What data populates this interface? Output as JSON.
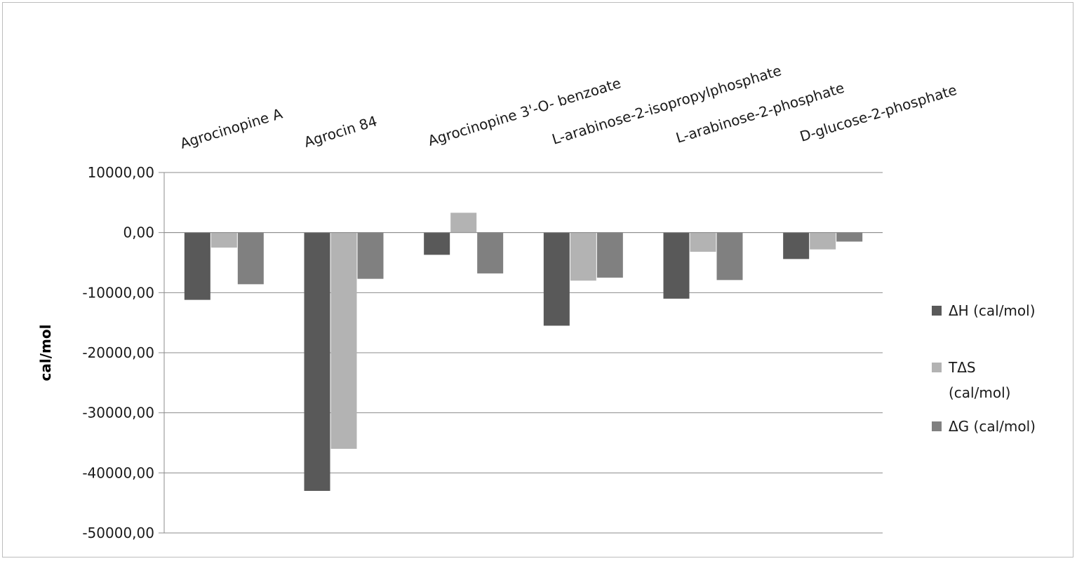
{
  "chart_data": {
    "type": "bar",
    "title": "",
    "xlabel": "",
    "ylabel": "cal/mol",
    "ylim": [
      -50000,
      10000
    ],
    "yticks": [
      10000,
      0,
      -10000,
      -20000,
      -30000,
      -40000,
      -50000
    ],
    "ytick_labels": [
      "10000,00",
      "0,00",
      "-10000,00",
      "-20000,00",
      "-30000,00",
      "-40000,00",
      "-50000,00"
    ],
    "grid": true,
    "legend_position": "right",
    "categories": [
      "Agrocinopine A",
      "Agrocin 84",
      "Agrocinopine 3'-O- benzoate",
      "L-arabinose-2-isopropylphosphate",
      "L-arabinose-2-phosphate",
      "D-glucose-2-phosphate"
    ],
    "series": [
      {
        "name": "ΔH (cal/mol)",
        "name_lines": [
          "ΔH (cal/mol)"
        ],
        "color": "#595959",
        "values": [
          -11200,
          -43000,
          -3700,
          -15500,
          -11000,
          -4400
        ]
      },
      {
        "name": "TΔS (cal/mol)",
        "name_lines": [
          "TΔS",
          "(cal/mol)"
        ],
        "color": "#b3b3b3",
        "values": [
          -2500,
          -36000,
          3300,
          -8000,
          -3200,
          -2800
        ]
      },
      {
        "name": "ΔG (cal/mol)",
        "name_lines": [
          "ΔG (cal/mol)"
        ],
        "color": "#808080",
        "values": [
          -8600,
          -7700,
          -6800,
          -7500,
          -7900,
          -1500
        ]
      }
    ]
  }
}
